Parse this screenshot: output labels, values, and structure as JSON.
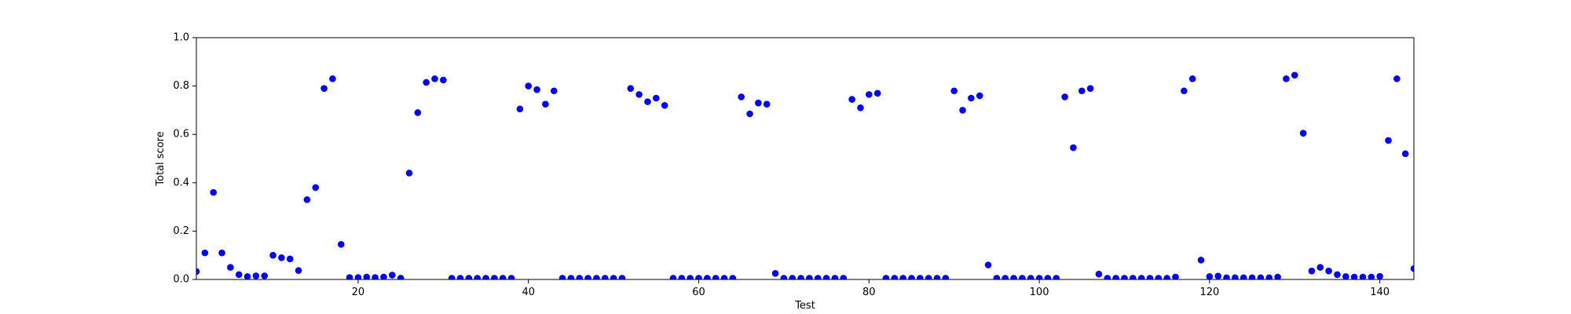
{
  "chart_data": {
    "type": "scatter",
    "x_label": "Test",
    "y_label": "Total score",
    "x": [
      1,
      2,
      3,
      4,
      5,
      6,
      7,
      8,
      9,
      10,
      11,
      12,
      13,
      14,
      15,
      16,
      17,
      18,
      19,
      20,
      21,
      22,
      23,
      24,
      25,
      26,
      27,
      28,
      29,
      30,
      31,
      32,
      33,
      34,
      35,
      36,
      37,
      38,
      39,
      40,
      41,
      42,
      43,
      44,
      45,
      46,
      47,
      48,
      49,
      50,
      51,
      52,
      53,
      54,
      55,
      56,
      57,
      58,
      59,
      60,
      61,
      62,
      63,
      64,
      65,
      66,
      67,
      68,
      69,
      70,
      71,
      72,
      73,
      74,
      75,
      76,
      77,
      78,
      79,
      80,
      81,
      82,
      83,
      84,
      85,
      86,
      87,
      88,
      89,
      90,
      91,
      92,
      93,
      94,
      95,
      96,
      97,
      98,
      99,
      100,
      101,
      102,
      103,
      104,
      105,
      106,
      107,
      108,
      109,
      110,
      111,
      112,
      113,
      114,
      115,
      116,
      117,
      118,
      119,
      120,
      121,
      122,
      123,
      124,
      125,
      126,
      127,
      128,
      129,
      130,
      131,
      132,
      133,
      134,
      135,
      136,
      137,
      138,
      139,
      140,
      141,
      142,
      143,
      144
    ],
    "values": [
      0.033,
      0.11,
      0.36,
      0.11,
      0.05,
      0.02,
      0.012,
      0.015,
      0.015,
      0.1,
      0.09,
      0.085,
      0.037,
      0.33,
      0.38,
      0.79,
      0.83,
      0.145,
      0.008,
      0.008,
      0.01,
      0.008,
      0.01,
      0.018,
      0.005,
      0.44,
      0.69,
      0.815,
      0.83,
      0.825,
      0.005,
      0.005,
      0.005,
      0.005,
      0.005,
      0.005,
      0.005,
      0.005,
      0.705,
      0.8,
      0.785,
      0.725,
      0.78,
      0.005,
      0.005,
      0.005,
      0.005,
      0.005,
      0.005,
      0.005,
      0.005,
      0.79,
      0.765,
      0.735,
      0.75,
      0.72,
      0.005,
      0.005,
      0.005,
      0.005,
      0.005,
      0.005,
      0.005,
      0.005,
      0.755,
      0.685,
      0.73,
      0.725,
      0.025,
      0.005,
      0.005,
      0.005,
      0.005,
      0.005,
      0.005,
      0.005,
      0.005,
      0.745,
      0.71,
      0.765,
      0.77,
      0.005,
      0.005,
      0.005,
      0.005,
      0.005,
      0.005,
      0.005,
      0.005,
      0.78,
      0.7,
      0.75,
      0.76,
      0.06,
      0.005,
      0.005,
      0.005,
      0.005,
      0.005,
      0.005,
      0.005,
      0.005,
      0.755,
      0.545,
      0.78,
      0.79,
      0.022,
      0.005,
      0.005,
      0.005,
      0.005,
      0.005,
      0.005,
      0.005,
      0.005,
      0.01,
      0.78,
      0.83,
      0.08,
      0.012,
      0.014,
      0.007,
      0.007,
      0.007,
      0.007,
      0.007,
      0.007,
      0.01,
      0.83,
      0.845,
      0.605,
      0.035,
      0.05,
      0.035,
      0.02,
      0.012,
      0.01,
      0.01,
      0.01,
      0.013,
      0.575,
      0.83,
      0.52,
      0.045
    ],
    "color": "#0000ff",
    "xlim": [
      1,
      144
    ],
    "xticks": [
      20,
      40,
      60,
      80,
      100,
      120,
      140
    ],
    "ylim": [
      0,
      1
    ],
    "yticks": [
      {
        "value": 0,
        "label": "0.0"
      },
      0.2,
      0.4,
      0.6,
      0.8,
      {
        "value": 1,
        "label": "1.0"
      }
    ]
  }
}
